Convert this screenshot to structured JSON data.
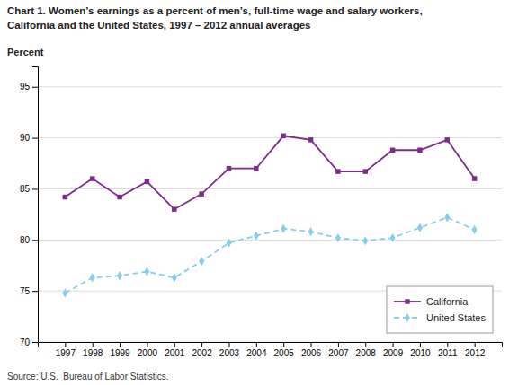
{
  "chart_data": {
    "type": "line",
    "title": "Chart 1. Women’s earnings as a percent of men’s, full-time wage and salary workers,",
    "subtitle": "California and the United States, 1997 – 2012 annual averages",
    "y_label": "Percent",
    "annotations": [
      "Source: U.S.  Bureau of Labor Statistics."
    ],
    "x": [
      1997,
      1998,
      1999,
      2000,
      2001,
      2002,
      2003,
      2004,
      2005,
      2006,
      2007,
      2008,
      2009,
      2010,
      2011,
      2012
    ],
    "xlim": [
      1996,
      2013
    ],
    "xticks": [
      1997,
      1998,
      1999,
      2000,
      2001,
      2002,
      2003,
      2004,
      2005,
      2006,
      2007,
      2008,
      2009,
      2010,
      2011,
      2012
    ],
    "ylim": [
      70,
      97
    ],
    "yticks": [
      70,
      75,
      80,
      85,
      90,
      95
    ],
    "grid": true,
    "legend": "lower right",
    "series": [
      {
        "name": "California",
        "color": "#7B2D8B",
        "marker": "square",
        "line_style": "solid",
        "values": [
          84.2,
          86.0,
          84.2,
          85.7,
          83.0,
          84.5,
          87.0,
          87.0,
          90.2,
          89.8,
          86.7,
          86.7,
          88.8,
          88.8,
          89.8,
          86.0
        ]
      },
      {
        "name": "United States",
        "color": "#87CEEB",
        "marker": "diamond",
        "line_style": "dashed",
        "values": [
          74.8,
          76.3,
          76.5,
          76.9,
          76.3,
          77.9,
          79.7,
          80.4,
          81.1,
          80.8,
          80.2,
          79.9,
          80.2,
          81.2,
          82.2,
          81.0
        ]
      }
    ]
  }
}
